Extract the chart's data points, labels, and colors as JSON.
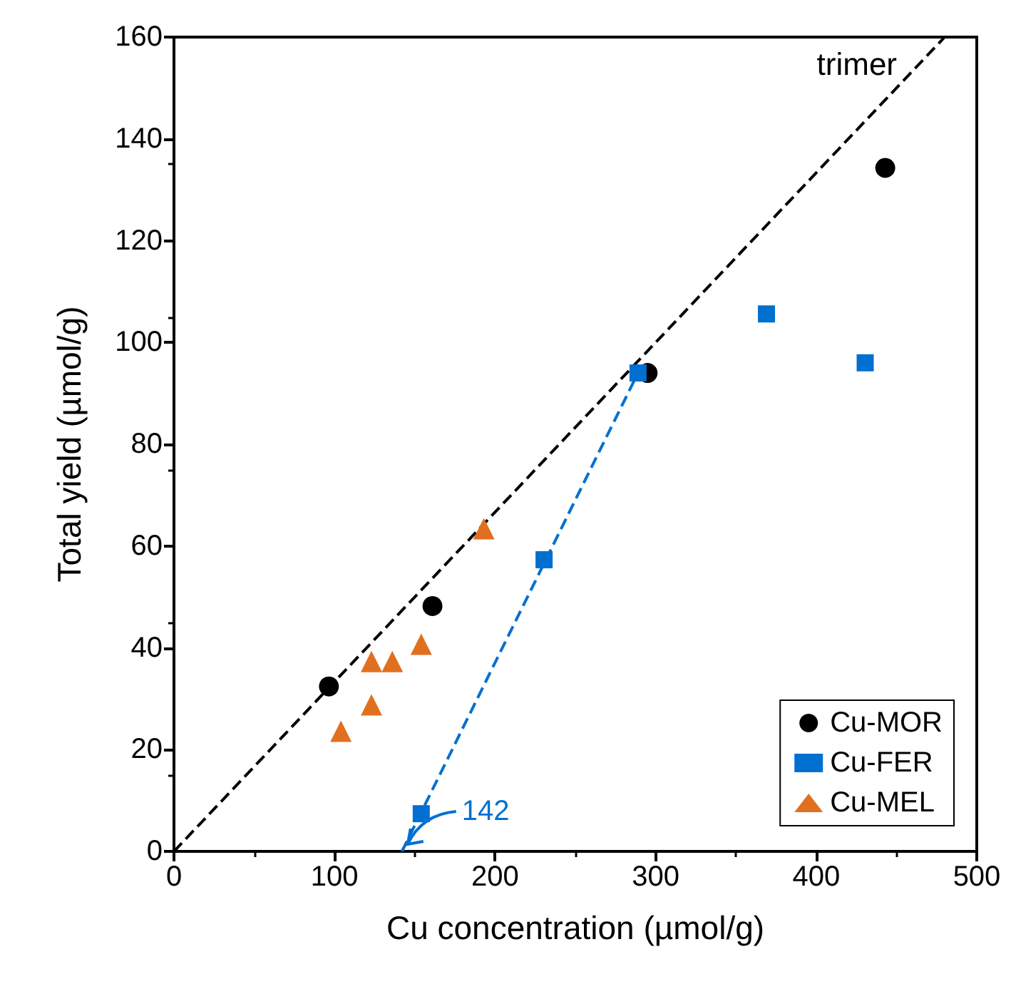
{
  "chart_data": {
    "type": "scatter",
    "xlabel": "Cu concentration (µmol/g)",
    "ylabel": "Total yield (µmol/g)",
    "xlim": [
      0,
      500
    ],
    "xticks": [
      0,
      100,
      200,
      300,
      400,
      500
    ],
    "ylim": [
      0,
      160
    ],
    "yticks": [
      0,
      20,
      40,
      60,
      80,
      100,
      120,
      140,
      160
    ],
    "grid": false,
    "legend": "bottom right",
    "series": [
      {
        "name": "Cu-MOR",
        "color": "#000000",
        "marker": "circle",
        "x": [
          96.5,
          161,
          295,
          443
        ],
        "values": [
          32.4,
          48.2,
          94,
          134.3
        ]
      },
      {
        "name": "Cu-FER",
        "color": "#0070d0",
        "marker": "square",
        "x": [
          154,
          230.5,
          289,
          369,
          430.5
        ],
        "values": [
          7.4,
          57.3,
          94,
          105.6,
          96
        ]
      },
      {
        "name": "Cu-MEL",
        "color": "#e07020",
        "marker": "triangle",
        "x": [
          104,
          123,
          123,
          136,
          154,
          193
        ],
        "values": [
          23.6,
          28.8,
          37.3,
          37.3,
          40.7,
          63.4
        ]
      },
      {
        "type": "line",
        "color": "#000000",
        "marker": "none",
        "line_style": "dashed",
        "x": [
          0,
          480
        ],
        "values": [
          0,
          160
        ]
      },
      {
        "type": "line",
        "color": "#0070d0",
        "marker": "none",
        "line_style": "dashed",
        "x": [
          142,
          289
        ],
        "values": [
          0,
          94
        ]
      }
    ],
    "annotations": [
      "trimer",
      {
        "text": "142",
        "x": 142,
        "y": 0
      }
    ]
  }
}
